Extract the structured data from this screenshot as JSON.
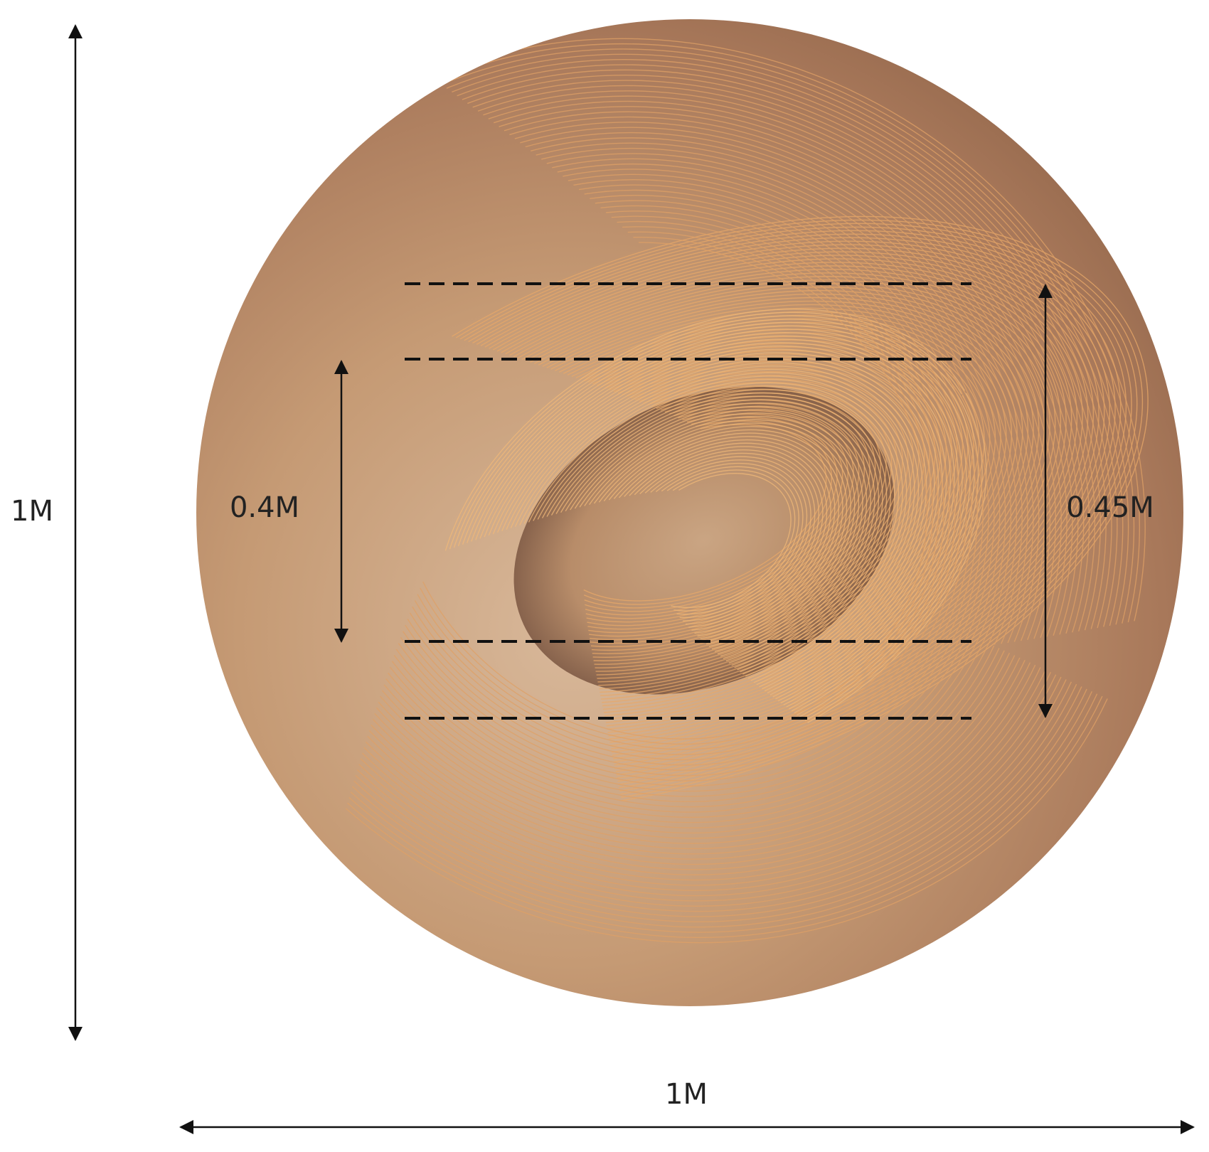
{
  "dimensions": {
    "height": "1M",
    "width": "1M",
    "inner_gap": "0.4M",
    "outer_gap": "0.45M"
  }
}
